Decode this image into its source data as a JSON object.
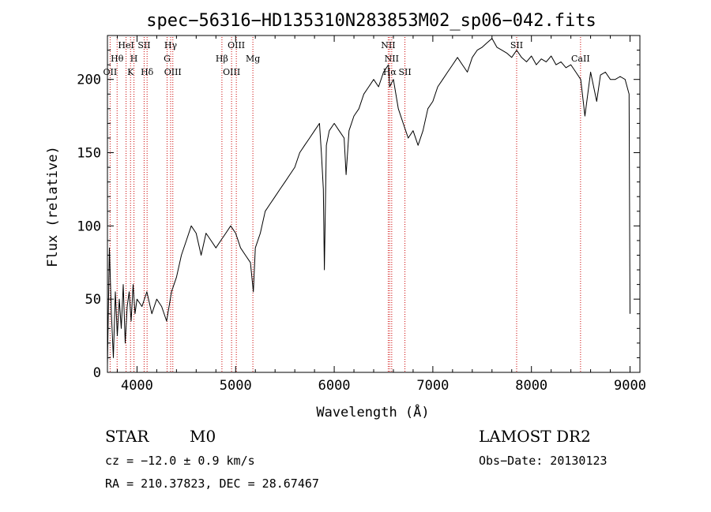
{
  "chart_data": {
    "type": "line",
    "title": "spec−56316−HD135310N283853M02_sp06−042.fits",
    "xlabel": "Wavelength (Å)",
    "ylabel": "Flux (relative)",
    "xlim": [
      3700,
      9100
    ],
    "ylim": [
      0,
      230
    ],
    "xticks": [
      4000,
      5000,
      6000,
      7000,
      8000,
      9000
    ],
    "yticks": [
      0,
      50,
      100,
      150,
      200
    ],
    "grid": false,
    "series": [
      {
        "color": "#000000",
        "x": [
          3700,
          3720,
          3740,
          3760,
          3780,
          3800,
          3820,
          3840,
          3860,
          3880,
          3900,
          3920,
          3940,
          3960,
          3980,
          4000,
          4050,
          4100,
          4150,
          4200,
          4250,
          4300,
          4350,
          4400,
          4450,
          4500,
          4550,
          4600,
          4650,
          4700,
          4750,
          4800,
          4850,
          4900,
          4950,
          5000,
          5050,
          5100,
          5150,
          5180,
          5200,
          5250,
          5300,
          5350,
          5400,
          5450,
          5500,
          5550,
          5600,
          5650,
          5700,
          5750,
          5800,
          5850,
          5870,
          5890,
          5900,
          5920,
          5950,
          6000,
          6050,
          6100,
          6120,
          6150,
          6200,
          6250,
          6300,
          6350,
          6400,
          6450,
          6500,
          6550,
          6562,
          6600,
          6650,
          6700,
          6750,
          6800,
          6850,
          6900,
          6950,
          7000,
          7050,
          7100,
          7150,
          7200,
          7250,
          7300,
          7350,
          7400,
          7450,
          7500,
          7550,
          7600,
          7650,
          7700,
          7750,
          7800,
          7850,
          7900,
          7950,
          8000,
          8050,
          8100,
          8150,
          8200,
          8250,
          8300,
          8350,
          8400,
          8450,
          8500,
          8542,
          8600,
          8662,
          8700,
          8750,
          8800,
          8850,
          8900,
          8950,
          8990,
          9000
        ],
        "y": [
          5,
          85,
          40,
          10,
          55,
          25,
          50,
          30,
          60,
          20,
          45,
          55,
          35,
          60,
          40,
          50,
          45,
          55,
          40,
          50,
          45,
          35,
          55,
          65,
          80,
          90,
          100,
          95,
          80,
          95,
          90,
          85,
          90,
          95,
          100,
          95,
          85,
          80,
          75,
          55,
          85,
          95,
          110,
          115,
          120,
          125,
          130,
          135,
          140,
          150,
          155,
          160,
          165,
          170,
          150,
          125,
          70,
          155,
          165,
          170,
          165,
          160,
          135,
          165,
          175,
          180,
          190,
          195,
          200,
          195,
          205,
          210,
          195,
          200,
          180,
          170,
          160,
          165,
          155,
          165,
          180,
          185,
          195,
          200,
          205,
          210,
          215,
          210,
          205,
          215,
          220,
          222,
          225,
          228,
          222,
          220,
          218,
          215,
          220,
          215,
          212,
          216,
          210,
          214,
          212,
          216,
          210,
          212,
          208,
          210,
          205,
          200,
          175,
          205,
          185,
          203,
          205,
          200,
          200,
          202,
          200,
          190,
          40
        ]
      }
    ],
    "spectral_lines": [
      {
        "label": "OII",
        "x": 3727,
        "row": 3
      },
      {
        "label": "Hθ",
        "x": 3798,
        "row": 2
      },
      {
        "label": "HeI",
        "x": 3889,
        "row": 1
      },
      {
        "label": "K",
        "x": 3934,
        "row": 3
      },
      {
        "label": "H",
        "x": 3969,
        "row": 2
      },
      {
        "label": "SII",
        "x": 4072,
        "row": 1
      },
      {
        "label": "Hδ",
        "x": 4102,
        "row": 3
      },
      {
        "label": "Hγ",
        "x": 4341,
        "row": 1
      },
      {
        "label": "G",
        "x": 4305,
        "row": 2
      },
      {
        "label": "OIII",
        "x": 4363,
        "row": 3
      },
      {
        "label": "Hβ",
        "x": 4861,
        "row": 2
      },
      {
        "label": "OIII",
        "x": 4959,
        "row": 3
      },
      {
        "label": "OIII",
        "x": 5007,
        "row": 1
      },
      {
        "label": "Mg",
        "x": 5175,
        "row": 2
      },
      {
        "label": "NII",
        "x": 6548,
        "row": 1
      },
      {
        "label": "NII",
        "x": 6583,
        "row": 2
      },
      {
        "label": "Hα",
        "x": 6563,
        "row": 3
      },
      {
        "label": "SII",
        "x": 6717,
        "row": 3
      },
      {
        "label": "SII",
        "x": 7850,
        "row": 1
      },
      {
        "label": "CaII",
        "x": 8498,
        "row": 2
      }
    ]
  },
  "info": {
    "object_class": "STAR",
    "subclass": "M0",
    "cz": "cz = −12.0 ± 0.9 km/s",
    "coords": "RA = 210.37823, DEC =  28.67467",
    "survey": "LAMOST DR2",
    "obs_date": "Obs−Date: 20130123"
  },
  "colors": {
    "line_marker": "#cc0000",
    "spectrum": "#000000"
  }
}
